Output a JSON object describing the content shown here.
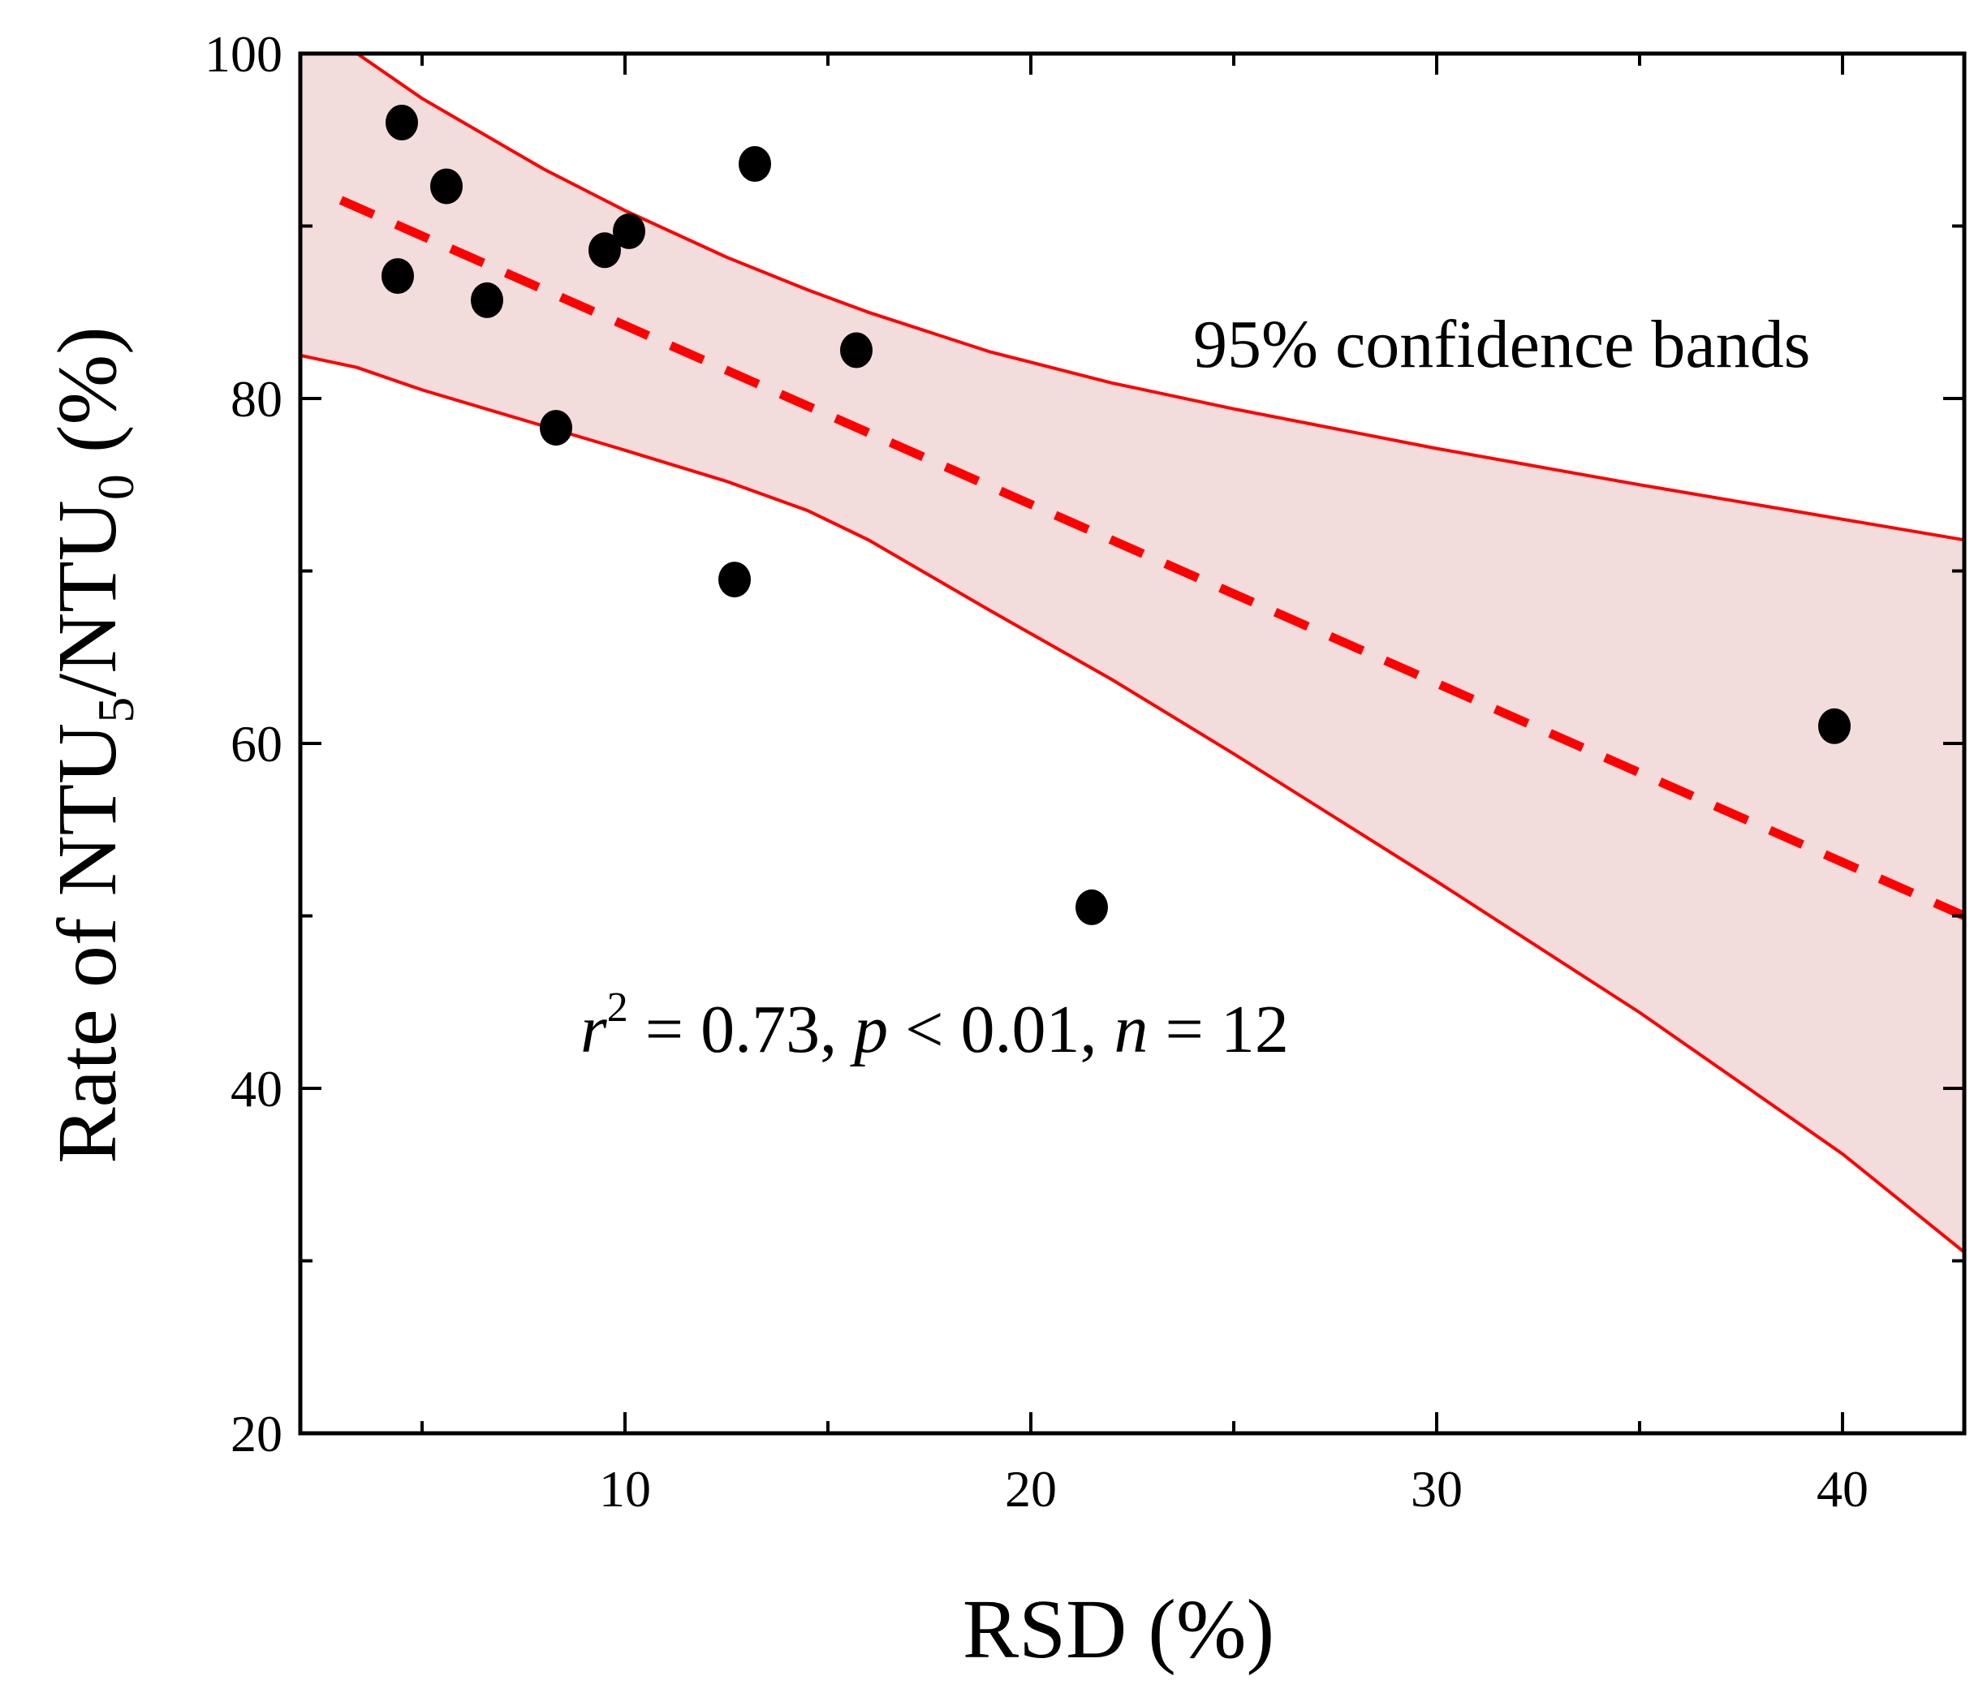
{
  "chart_data": {
    "type": "scatter",
    "title": "",
    "xlabel": "RSD (%)",
    "ylabel": {
      "prefix": "Rate of NTU",
      "sub1": "5",
      "mid": "/NTU",
      "sub2": "0",
      "suffix": " (%)"
    },
    "xlim": [
      2,
      43
    ],
    "ylim": [
      20,
      100
    ],
    "xticks": [
      10,
      20,
      30,
      40
    ],
    "yticks": [
      20,
      40,
      60,
      80,
      100
    ],
    "x_minor_ticks": [
      5,
      15,
      25,
      35
    ],
    "y_minor_ticks": [
      30,
      50,
      70,
      90
    ],
    "grid": false,
    "points": {
      "x": [
        4.5,
        5.6,
        4.4,
        6.6,
        8.3,
        9.5,
        10.1,
        13.2,
        12.7,
        15.7,
        21.5,
        39.8
      ],
      "y": [
        96.0,
        92.3,
        87.1,
        85.7,
        78.3,
        88.6,
        89.7,
        93.6,
        69.5,
        82.8,
        50.5,
        61.0
      ],
      "color": "#000000"
    },
    "fit_line": {
      "name": "linear fit",
      "x": [
        3,
        43
      ],
      "y": [
        91.5,
        50.0
      ],
      "color": "#ff0000",
      "style": "dashed"
    },
    "confidence_band": {
      "label": "95% confidence bands",
      "x": [
        2,
        3.4,
        5,
        8,
        10,
        12.5,
        14.5,
        16,
        19,
        22,
        25,
        30,
        35,
        40,
        43
      ],
      "upper": [
        100.5,
        100.0,
        97.4,
        93.3,
        90.9,
        88.2,
        86.3,
        85.0,
        82.7,
        80.9,
        79.4,
        77.1,
        75.0,
        73.0,
        71.8
      ],
      "lower": [
        82.5,
        81.8,
        80.5,
        78.4,
        77.0,
        75.2,
        73.5,
        71.8,
        67.7,
        63.7,
        59.4,
        52.0,
        44.4,
        36.2,
        30.5
      ],
      "line_color": "#ff0000",
      "fill_color": "#f2dcdc"
    },
    "annotations": {
      "band_label": "95% confidence bands",
      "stats": {
        "r": "r",
        "r_sup": "2",
        "r_val": " = 0.73, ",
        "p": "p",
        "p_val": " < 0.01, ",
        "n": "n",
        "n_val": " = 12"
      }
    }
  }
}
